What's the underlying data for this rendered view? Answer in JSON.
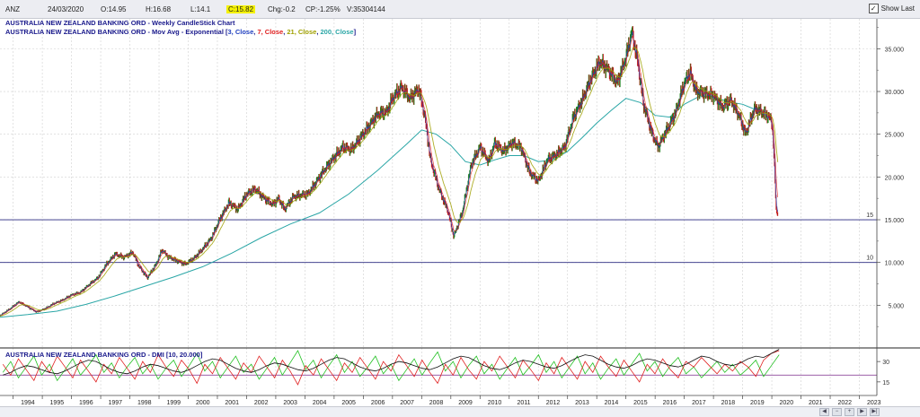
{
  "header": {
    "symbol": "ANZ",
    "date": "24/03/2020",
    "open": "O:14.95",
    "high": "H:16.68",
    "low": "L:14.1",
    "close": "C:15.82",
    "change": "Chg:-0.2",
    "change_pct": "CP:-1.25%",
    "volume": "V:35304144",
    "show_last_label": "Show Last",
    "show_last_checked": true
  },
  "colors": {
    "accent": "#1a1a8c",
    "ema3": "#1f3fbf",
    "ema7": "#e02020",
    "ema21": "#a0a000",
    "ema200": "#2aa6a6",
    "dmi_plus": "#22c022",
    "dmi_minus": "#e02020",
    "adx": "#111111",
    "hline": "#2a2a80"
  },
  "chart_data": [
    {
      "type": "line",
      "title": "AUSTRALIA NEW ZEALAND BANKING ORD - Weekly CandleStick Chart",
      "subtitle_parts": [
        "AUSTRALIA NEW ZEALAND BANKING ORD - Mov Avg - Exponential [",
        "3, Close",
        ", ",
        "7, Close",
        ", ",
        "21, Close",
        ", ",
        "200, Close",
        "]"
      ],
      "x_tick_labels": [
        "1994",
        "1995",
        "1996",
        "1997",
        "1998",
        "1999",
        "2000",
        "2001",
        "2002",
        "2003",
        "2004",
        "2005",
        "2006",
        "2007",
        "2008",
        "2009",
        "2010",
        "2011",
        "2012",
        "2013",
        "2014",
        "2015",
        "2016",
        "2017",
        "2018",
        "2019",
        "2020",
        "2021",
        "2022",
        "2023"
      ],
      "y_tick_labels": [
        "5.000",
        "10.000",
        "15.000",
        "20.000",
        "25.000",
        "30.000",
        "35.000"
      ],
      "y_ticks": [
        5,
        10,
        15,
        20,
        25,
        30,
        35
      ],
      "ylim": [
        0,
        38.5
      ],
      "xlim": [
        1993.55,
        2023.6
      ],
      "grid": true,
      "horizontal_lines": [
        {
          "value": 15,
          "label": "15"
        },
        {
          "value": 10,
          "label": "10"
        }
      ],
      "price_series": {
        "name": "Close",
        "x": [
          1993.55,
          1993.9,
          1994.2,
          1994.5,
          1994.8,
          1995.1,
          1995.4,
          1995.7,
          1996.0,
          1996.3,
          1996.6,
          1996.9,
          1997.2,
          1997.5,
          1997.8,
          1998.1,
          1998.3,
          1998.6,
          1998.9,
          1999.1,
          1999.3,
          1999.6,
          1999.9,
          2000.2,
          2000.5,
          2000.8,
          2001.1,
          2001.4,
          2001.7,
          2002.0,
          2002.3,
          2002.6,
          2002.9,
          2003.1,
          2003.3,
          2003.6,
          2003.9,
          2004.1,
          2004.4,
          2004.7,
          2005.0,
          2005.3,
          2005.6,
          2005.9,
          2006.2,
          2006.5,
          2006.8,
          2007.0,
          2007.3,
          2007.6,
          2007.9,
          2008.1,
          2008.3,
          2008.6,
          2008.9,
          2009.1,
          2009.4,
          2009.7,
          2010.0,
          2010.3,
          2010.5,
          2010.8,
          2011.1,
          2011.4,
          2011.7,
          2012.0,
          2012.3,
          2012.6,
          2012.9,
          2013.2,
          2013.5,
          2013.8,
          2014.1,
          2014.4,
          2014.7,
          2015.0,
          2015.2,
          2015.4,
          2015.6,
          2015.9,
          2016.1,
          2016.4,
          2016.7,
          2017.0,
          2017.2,
          2017.4,
          2017.7,
          2018.0,
          2018.3,
          2018.6,
          2018.9,
          2019.1,
          2019.4,
          2019.7,
          2019.9,
          2020.0,
          2020.05,
          2020.1,
          2020.15,
          2020.22
        ],
        "close": [
          3.8,
          4.6,
          5.4,
          4.8,
          4.2,
          4.6,
          5.2,
          5.6,
          6.2,
          6.5,
          7.4,
          8.2,
          9.8,
          11.0,
          10.6,
          11.2,
          9.6,
          8.2,
          9.8,
          11.5,
          10.7,
          10.2,
          9.8,
          10.5,
          11.6,
          12.9,
          15.2,
          17.0,
          16.2,
          18.0,
          18.6,
          17.5,
          16.8,
          17.5,
          16.2,
          17.7,
          17.9,
          18.0,
          19.5,
          21.0,
          22.3,
          23.5,
          23.2,
          24.6,
          26.0,
          27.4,
          27.6,
          29.2,
          30.5,
          29.2,
          30.3,
          27.2,
          22.0,
          18.5,
          16.0,
          13.0,
          16.0,
          21.5,
          23.5,
          21.8,
          24.0,
          23.0,
          24.0,
          23.5,
          20.5,
          19.5,
          22.0,
          22.6,
          23.5,
          27.0,
          29.0,
          31.5,
          33.5,
          32.5,
          31.0,
          34.0,
          37.0,
          33.5,
          28.5,
          25.0,
          23.5,
          25.5,
          27.5,
          31.0,
          32.3,
          30.0,
          29.8,
          29.5,
          28.2,
          29.0,
          27.0,
          25.0,
          28.0,
          27.5,
          27.0,
          26.5,
          24.0,
          20.0,
          16.0,
          15.8
        ]
      },
      "ema200_series": {
        "name": "200, Close",
        "x": [
          1993.55,
          1994.5,
          1995.5,
          1996.5,
          1997.5,
          1998.5,
          1999.5,
          2000.5,
          2001.5,
          2002.5,
          2003.5,
          2004.5,
          2005.5,
          2006.5,
          2007.5,
          2008.0,
          2008.5,
          2009.0,
          2009.5,
          2010.0,
          2010.5,
          2011.0,
          2011.5,
          2012.0,
          2012.5,
          2013.0,
          2013.5,
          2014.0,
          2014.5,
          2015.0,
          2015.5,
          2016.0,
          2016.5,
          2017.0,
          2017.5,
          2018.0,
          2018.5,
          2019.0,
          2019.5,
          2020.0
        ],
        "y": [
          3.6,
          3.9,
          4.3,
          5.1,
          6.1,
          7.2,
          8.3,
          9.5,
          11.1,
          12.9,
          14.5,
          15.8,
          18.0,
          20.8,
          23.9,
          25.5,
          25.0,
          23.7,
          21.8,
          21.4,
          22.0,
          22.5,
          22.5,
          21.8,
          22.0,
          23.0,
          24.6,
          26.3,
          27.8,
          29.2,
          28.7,
          27.2,
          27.0,
          28.5,
          29.4,
          29.4,
          28.8,
          28.5,
          27.8,
          27.2
        ]
      }
    },
    {
      "type": "line",
      "title": "AUSTRALIA NEW ZEALAND BANKING ORD - DMI [10, 20.000]",
      "y_tick_labels": [
        "30",
        "15"
      ],
      "y_ticks": [
        30,
        15
      ],
      "ylim": [
        5,
        40
      ],
      "reference_line": 20,
      "series": [
        {
          "name": "+DI",
          "values": [
            22,
            30,
            18,
            26,
            34,
            20,
            28,
            16,
            24,
            32,
            20,
            27,
            35,
            22,
            29,
            18,
            26,
            33,
            21,
            28,
            17,
            25,
            31,
            19,
            27,
            36,
            23,
            30,
            18,
            26,
            34,
            22,
            28,
            17,
            25,
            33,
            20,
            29,
            38,
            24,
            31,
            18,
            27,
            35,
            22,
            30,
            19,
            26,
            34,
            21,
            28,
            16,
            24,
            32,
            20,
            29,
            37,
            23,
            30,
            18,
            27,
            34,
            21,
            28,
            17,
            25,
            33,
            20,
            27,
            35,
            22,
            30,
            18,
            26,
            34,
            21,
            29,
            17,
            25,
            32,
            20,
            28,
            36,
            23,
            30,
            19,
            27,
            33,
            21,
            26,
            18,
            24,
            30,
            22,
            28,
            20,
            25,
            31,
            19,
            27,
            35
          ]
        },
        {
          "name": "-DI",
          "values": [
            28,
            20,
            32,
            24,
            16,
            30,
            22,
            34,
            26,
            18,
            31,
            23,
            15,
            28,
            21,
            33,
            25,
            17,
            30,
            22,
            35,
            26,
            19,
            31,
            24,
            14,
            28,
            21,
            33,
            25,
            17,
            29,
            22,
            34,
            26,
            18,
            31,
            23,
            13,
            27,
            20,
            32,
            24,
            16,
            29,
            22,
            33,
            25,
            17,
            30,
            23,
            35,
            27,
            19,
            31,
            22,
            14,
            28,
            20,
            33,
            24,
            17,
            30,
            23,
            34,
            26,
            18,
            31,
            24,
            16,
            29,
            21,
            33,
            25,
            17,
            30,
            22,
            34,
            26,
            19,
            31,
            23,
            15,
            28,
            21,
            32,
            24,
            18,
            30,
            26,
            33,
            27,
            21,
            28,
            23,
            30,
            26,
            19,
            31,
            36,
            38
          ]
        },
        {
          "name": "ADX",
          "values": [
            20,
            22,
            25,
            27,
            26,
            24,
            22,
            21,
            23,
            26,
            29,
            31,
            30,
            27,
            24,
            22,
            21,
            23,
            26,
            28,
            27,
            25,
            23,
            22,
            24,
            27,
            30,
            32,
            31,
            28,
            25,
            23,
            22,
            24,
            27,
            29,
            28,
            26,
            24,
            23,
            25,
            28,
            31,
            33,
            32,
            29,
            26,
            24,
            23,
            25,
            28,
            30,
            29,
            27,
            25,
            24,
            26,
            29,
            32,
            34,
            33,
            30,
            27,
            25,
            24,
            26,
            29,
            31,
            30,
            28,
            26,
            25,
            27,
            30,
            33,
            35,
            34,
            31,
            28,
            26,
            25,
            27,
            30,
            32,
            31,
            29,
            27,
            26,
            28,
            31,
            34,
            33,
            30,
            28,
            27,
            29,
            32,
            34,
            33,
            36,
            39
          ]
        }
      ]
    }
  ]
}
